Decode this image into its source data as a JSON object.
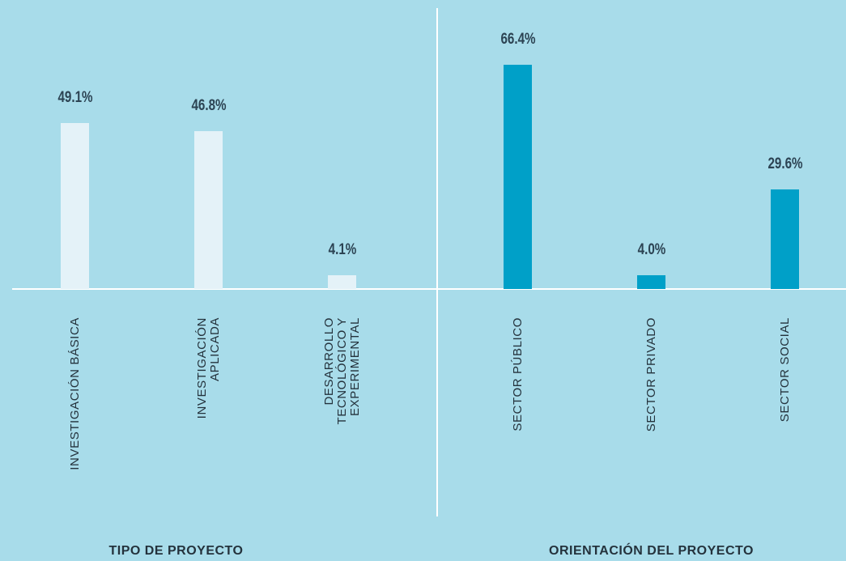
{
  "chart_data": [
    {
      "type": "bar",
      "xlabel": "TIPO DE PROYECTO",
      "categories": [
        "INVESTIGACIÓN BÁSICA",
        "INVESTIGACIÓN APLICADA",
        "DESARROLLO TECNOLÓGICO Y EXPERIMENTAL"
      ],
      "values": [
        49.1,
        46.8,
        4.1
      ],
      "value_labels": [
        "49.1%",
        "46.8%",
        "4.1%"
      ],
      "color": "#e4f2f8"
    },
    {
      "type": "bar",
      "xlabel": "ORIENTACIÓN DEL PROYECTO",
      "categories": [
        "SECTOR PÚBLICO",
        "SECTOR PRIVADO",
        "SECTOR SOCIAL"
      ],
      "values": [
        66.4,
        4.0,
        29.6
      ],
      "value_labels": [
        "66.4%",
        "4.0%",
        "29.6%"
      ],
      "color": "#00a0c8"
    }
  ]
}
